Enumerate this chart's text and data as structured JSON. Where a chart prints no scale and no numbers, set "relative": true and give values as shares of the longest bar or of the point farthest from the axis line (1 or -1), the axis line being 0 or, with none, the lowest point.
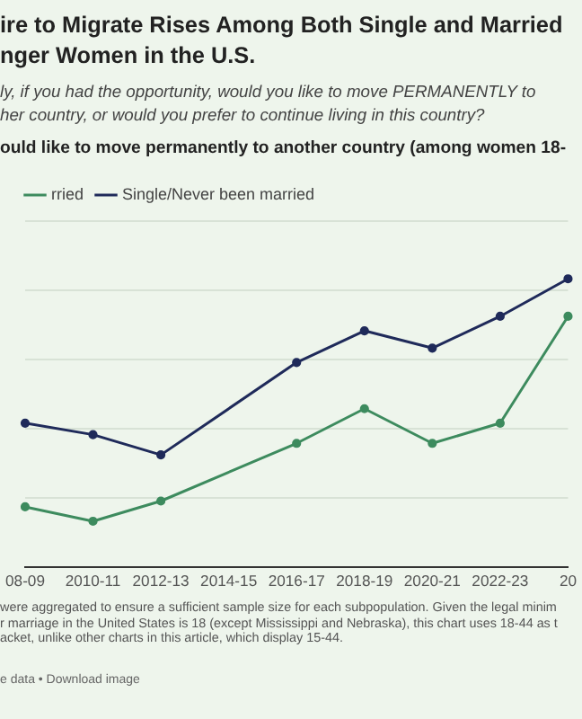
{
  "chart_data": {
    "type": "line",
    "title": "ire to Migrate Rises Among Both Single and Married\nnger Women in the U.S.",
    "subtitle": "ly, if you had the opportunity, would you like to move PERMANENTLY to\nher country, or would you prefer to continue living in this country?",
    "categories": [
      "08-09",
      "2010-11",
      "2012-13",
      "2014-15",
      "2016-17",
      "2018-19",
      "2020-21",
      "2022-23",
      "20"
    ],
    "relative": true,
    "grid": "y",
    "legend": "top left",
    "marker": "circle",
    "line_style": "solid",
    "series": [
      {
        "name": "rried",
        "color": "#3d8b5e",
        "values": [
          0.21,
          0.16,
          0.23,
          null,
          0.43,
          0.55,
          0.43,
          0.5,
          0.87
        ]
      },
      {
        "name": "Single/Never been married",
        "color": "#1f2a5a",
        "values": [
          0.5,
          0.46,
          0.39,
          null,
          0.71,
          0.82,
          0.76,
          0.87,
          1
        ]
      }
    ],
    "annotations": [
      "ould like to move permanently to another country (among women 18-",
      "were aggregated to ensure a sufficient sample size for each subpopulation. Given the legal minim\nr marriage in the United States is 18 (except Mississippi and Nebraska), this chart uses 18-44 as t\nacket, unlike other charts in this article, which display 15-44.",
      "e data • Download image"
    ]
  }
}
